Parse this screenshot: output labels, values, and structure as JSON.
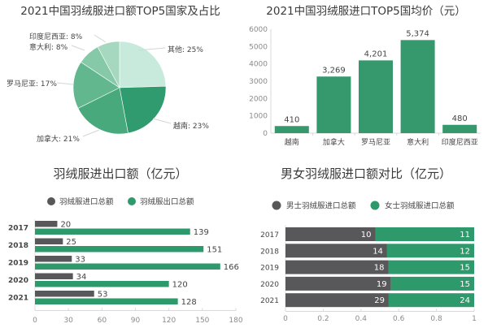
{
  "chart_data": [
    {
      "id": "pie",
      "type": "pie",
      "title": "2021中国羽绒服进口额TOP5国家及占比",
      "slices": [
        {
          "label": "其他",
          "value": 25,
          "display": "其他: 25%",
          "color": "#c8eadc"
        },
        {
          "label": "越南",
          "value": 23,
          "display": "越南: 23%",
          "color": "#2f9b6e"
        },
        {
          "label": "加拿大",
          "value": 21,
          "display": "加拿大: 21%",
          "color": "#48a97d"
        },
        {
          "label": "罗马尼亚",
          "value": 17,
          "display": "罗马尼亚: 17%",
          "color": "#62b78f"
        },
        {
          "label": "意大利",
          "value": 8,
          "display": "意大利: 8%",
          "color": "#86c9a8"
        },
        {
          "label": "印度尼西亚",
          "value": 8,
          "display": "印度尼西亚: 8%",
          "color": "#a6d8bf"
        }
      ],
      "start_angle_deg": 0,
      "direction": "clockwise"
    },
    {
      "id": "avgprice",
      "type": "bar",
      "title": "2021中国羽绒服进口TOP5国均价（元）",
      "categories": [
        "越南",
        "加拿大",
        "罗马尼亚",
        "意大利",
        "印度尼西亚"
      ],
      "values": [
        410,
        3269,
        4201,
        5374,
        480
      ],
      "value_labels": [
        "410",
        "3,269",
        "4,201",
        "5,374",
        "480"
      ],
      "xlabel": "",
      "ylabel": "",
      "ylim": [
        0,
        6000
      ],
      "yticks": [
        0,
        1000,
        2000,
        3000,
        4000,
        5000,
        6000
      ],
      "grid": false,
      "color": "#36996d"
    },
    {
      "id": "trade",
      "type": "bar",
      "orientation": "horizontal",
      "title": "羽绒服进出口额（亿元）",
      "categories": [
        "2017",
        "2018",
        "2019",
        "2020",
        "2021"
      ],
      "series": [
        {
          "name": "羽绒服进口总额",
          "values": [
            20,
            25,
            33,
            34,
            53
          ],
          "color": "#58585a"
        },
        {
          "name": "羽绒服出口总额",
          "values": [
            139,
            151,
            166,
            120,
            128
          ],
          "color": "#2e9a6c"
        }
      ],
      "xlim": [
        0,
        180
      ],
      "xticks": [
        0,
        30,
        60,
        90,
        120,
        150,
        180
      ],
      "legend_position": "top",
      "grid": false
    },
    {
      "id": "gender",
      "type": "bar",
      "orientation": "horizontal",
      "stacked": "percent",
      "title": "男女羽绒服进口额对比（亿元）",
      "categories": [
        "2017",
        "2018",
        "2019",
        "2020",
        "2021"
      ],
      "series": [
        {
          "name": "男士羽绒服进口总额",
          "values": [
            10,
            14,
            18,
            19,
            29
          ],
          "color": "#58585a"
        },
        {
          "name": "女士羽绒服进口总额",
          "values": [
            11,
            12,
            15,
            15,
            24
          ],
          "color": "#2e9a6c"
        }
      ],
      "xlim": [
        0,
        1
      ],
      "xticks": [
        "0",
        "0.2",
        "0.4",
        "0.6",
        "0.8",
        "1"
      ],
      "legend_position": "top",
      "grid": false
    }
  ]
}
